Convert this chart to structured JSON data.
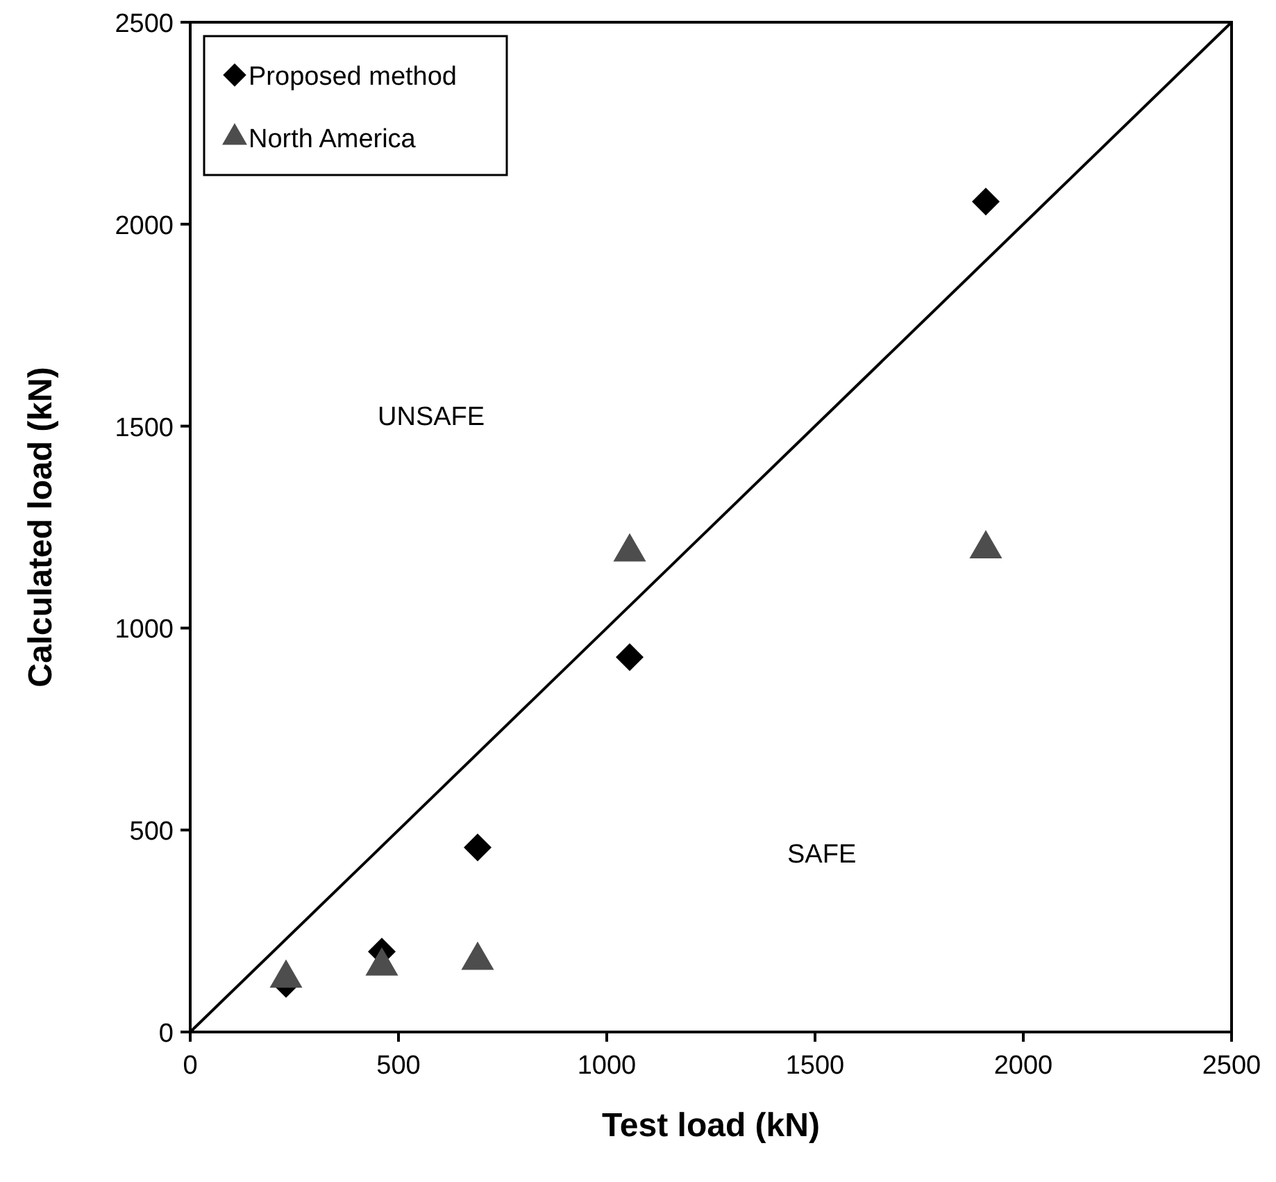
{
  "chart_data": {
    "type": "scatter",
    "xlabel": "Test load (kN)",
    "ylabel": "Calculated load (kN)",
    "xlim": [
      0,
      2500
    ],
    "ylim": [
      0,
      2500
    ],
    "xticks": [
      0,
      500,
      1000,
      1500,
      2000,
      2500
    ],
    "yticks": [
      0,
      500,
      1000,
      1500,
      2000,
      2500
    ],
    "grid": false,
    "legend": "top left",
    "annotations": [
      "UNSAFE",
      "SAFE"
    ],
    "series": [
      {
        "name": "Proposed method",
        "color": "#000000",
        "marker": "diamond",
        "x": [
          230,
          460,
          690,
          1055,
          1910
        ],
        "values": [
          119,
          199,
          457,
          928,
          2056
        ]
      },
      {
        "name": "North America",
        "color": "#4d4d4d",
        "marker": "triangle",
        "x": [
          230,
          460,
          690,
          1055,
          1910
        ],
        "values": [
          140,
          170,
          184,
          1195,
          1203
        ]
      },
      {
        "type": "line",
        "color": "#000000",
        "x": [
          0,
          2500
        ],
        "values": [
          0,
          2500
        ]
      }
    ]
  }
}
